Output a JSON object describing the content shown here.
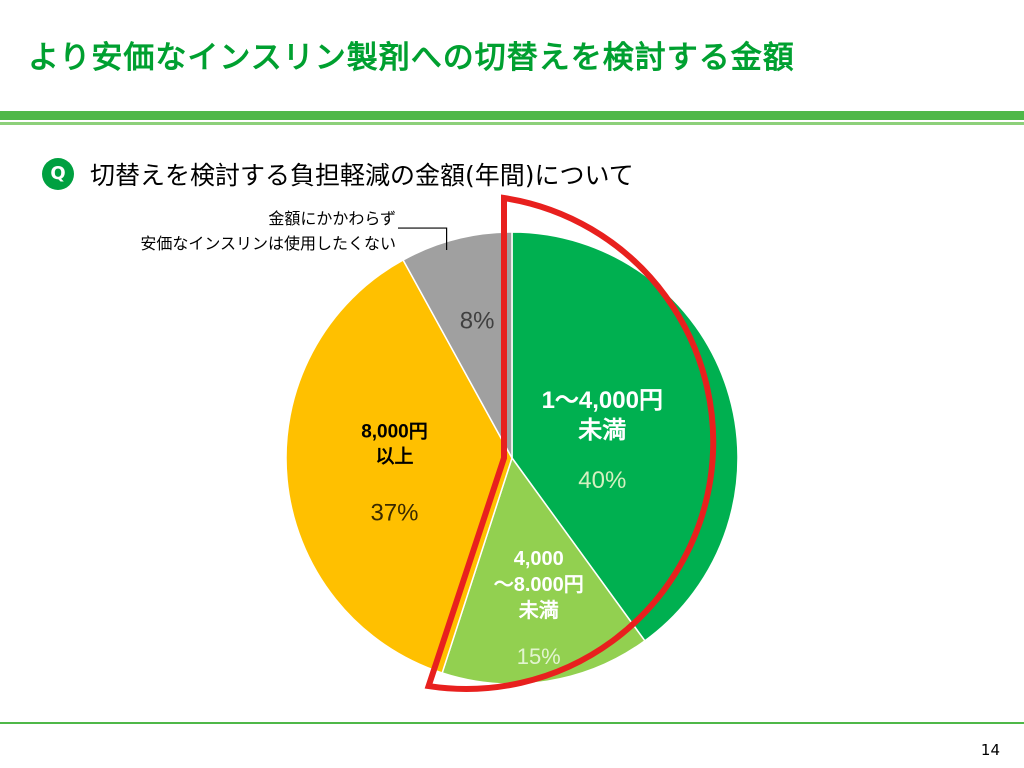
{
  "slide": {
    "title": "より安価なインスリン製剤への切替えを検討する金額",
    "question_badge": "Q",
    "question": "切替えを検討する負担軽減の金額(年間)について",
    "page_number": "14"
  },
  "chart_data": {
    "type": "pie",
    "start_angle_deg": 0,
    "direction": "clockwise",
    "highlight": [
      "1～4,000円未満",
      "4,000～8.000円未満"
    ],
    "highlight_color": "#e8201e",
    "slices": [
      {
        "label_lines": [
          "1～4,000円",
          "未満"
        ],
        "percent_label": "40%",
        "value": 40,
        "color": "#00b050",
        "label_color": "#ffffff",
        "percent_color": "#d4f0c0"
      },
      {
        "label_lines": [
          "4,000",
          "～8.000円",
          "未満"
        ],
        "percent_label": "15%",
        "value": 15,
        "color": "#92d050",
        "label_color": "#ffffff",
        "percent_color": "#e2f4d0"
      },
      {
        "label_lines": [
          "8,000円",
          "以上"
        ],
        "percent_label": "37%",
        "value": 37,
        "color": "#ffc000",
        "label_color": "#000000",
        "percent_color": "#3a2a00"
      },
      {
        "label_lines": [],
        "percent_label": "8%",
        "value": 8,
        "color": "#a0a0a0",
        "label_color": "#404040",
        "percent_color": "#404040"
      }
    ],
    "callout": {
      "slice_index": 3,
      "lines": [
        "金額にかかわらず",
        "安価なインスリンは使用したくない"
      ]
    }
  }
}
